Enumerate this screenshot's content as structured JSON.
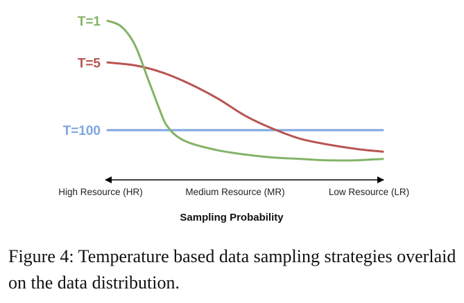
{
  "chart_data": {
    "type": "line",
    "title": "",
    "xlabel": "Sampling Probability",
    "ylabel": "",
    "x_categories": [
      "High Resource (HR)",
      "Medium Resource (MR)",
      "Low Resource (LR)"
    ],
    "xlim": [
      0,
      1
    ],
    "ylim": [
      0,
      1
    ],
    "series": [
      {
        "name": "T=1",
        "color": "#82b366",
        "x": [
          0.0,
          0.05,
          0.1,
          0.15,
          0.2,
          0.22,
          0.25,
          0.3,
          0.4,
          0.5,
          0.6,
          0.7,
          0.8,
          0.9,
          1.0
        ],
        "y": [
          1.0,
          0.96,
          0.83,
          0.58,
          0.33,
          0.26,
          0.2,
          0.15,
          0.1,
          0.07,
          0.05,
          0.04,
          0.03,
          0.03,
          0.04
        ]
      },
      {
        "name": "T=5",
        "color": "#b85450",
        "x": [
          0.0,
          0.1,
          0.2,
          0.3,
          0.4,
          0.5,
          0.6,
          0.7,
          0.8,
          0.9,
          1.0
        ],
        "y": [
          0.71,
          0.69,
          0.64,
          0.56,
          0.46,
          0.34,
          0.25,
          0.18,
          0.14,
          0.11,
          0.09
        ]
      },
      {
        "name": "T=100",
        "color": "#7ea6e0",
        "x": [
          0.0,
          1.0
        ],
        "y": [
          0.24,
          0.24
        ]
      }
    ]
  },
  "caption": "Figure 4: Temperature based data sampling strategies overlaid on the data distribution."
}
